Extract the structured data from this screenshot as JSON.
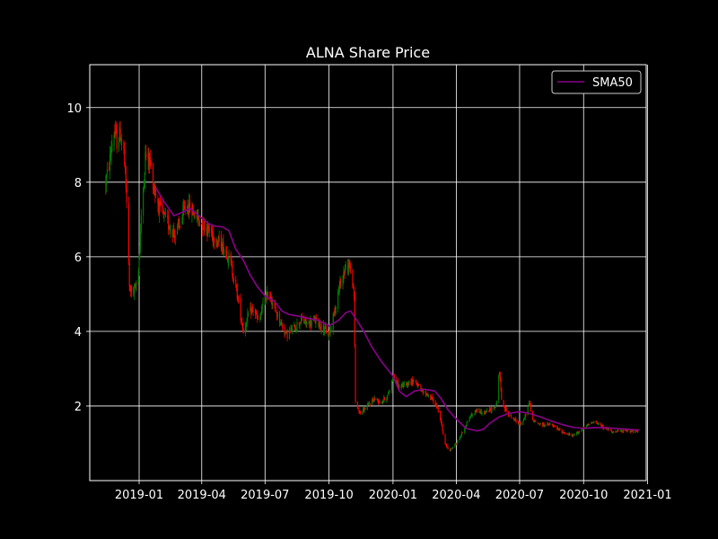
{
  "chart_data": {
    "type": "candlestick",
    "title": "ALNA Share Price",
    "xlabel": "",
    "ylabel": "",
    "grid": true,
    "legend_position": "top-right",
    "background": "#000000",
    "foreground": "#ffffff",
    "up_color": "#008000",
    "down_color": "#ff0000",
    "sma_color": "#8b008b",
    "xlim": [
      "2018-10-22",
      "2020-12-30"
    ],
    "ylim": [
      0.0,
      11.15
    ],
    "x_ticks": [
      {
        "value": "2019-01-01",
        "label": "2019-01"
      },
      {
        "value": "2019-04-01",
        "label": "2019-04"
      },
      {
        "value": "2019-07-01",
        "label": "2019-07"
      },
      {
        "value": "2019-10-01",
        "label": "2019-10"
      },
      {
        "value": "2020-01-01",
        "label": "2020-01"
      },
      {
        "value": "2020-04-01",
        "label": "2020-04"
      },
      {
        "value": "2020-07-01",
        "label": "2020-07"
      },
      {
        "value": "2020-10-01",
        "label": "2020-10"
      },
      {
        "value": "2021-01-01",
        "label": "2021-01"
      }
    ],
    "y_ticks": [
      {
        "value": 2,
        "label": "2"
      },
      {
        "value": 4,
        "label": "4"
      },
      {
        "value": 6,
        "label": "6"
      },
      {
        "value": 8,
        "label": "8"
      },
      {
        "value": 10,
        "label": "10"
      }
    ],
    "price_path": [
      [
        "2018-11-14",
        8.0
      ],
      [
        "2018-11-20",
        8.6
      ],
      [
        "2018-11-25",
        9.4
      ],
      [
        "2018-11-30",
        9.1
      ],
      [
        "2018-12-05",
        9.3
      ],
      [
        "2018-12-10",
        8.8
      ],
      [
        "2018-12-14",
        7.5
      ],
      [
        "2018-12-18",
        5.2
      ],
      [
        "2018-12-24",
        5.0
      ],
      [
        "2018-12-30",
        5.4
      ],
      [
        "2019-01-05",
        7.3
      ],
      [
        "2019-01-10",
        8.7
      ],
      [
        "2019-01-16",
        8.6
      ],
      [
        "2019-01-22",
        7.9
      ],
      [
        "2019-01-30",
        7.3
      ],
      [
        "2019-02-07",
        7.0
      ],
      [
        "2019-02-15",
        6.8
      ],
      [
        "2019-02-22",
        6.6
      ],
      [
        "2019-03-01",
        6.9
      ],
      [
        "2019-03-10",
        7.4
      ],
      [
        "2019-03-20",
        7.2
      ],
      [
        "2019-03-28",
        7.0
      ],
      [
        "2019-04-08",
        6.8
      ],
      [
        "2019-04-20",
        6.5
      ],
      [
        "2019-05-01",
        6.3
      ],
      [
        "2019-05-10",
        6.0
      ],
      [
        "2019-05-20",
        5.2
      ],
      [
        "2019-05-31",
        4.0
      ],
      [
        "2019-06-08",
        4.5
      ],
      [
        "2019-06-15",
        4.6
      ],
      [
        "2019-06-22",
        4.2
      ],
      [
        "2019-06-30",
        4.9
      ],
      [
        "2019-07-08",
        5.0
      ],
      [
        "2019-07-15",
        4.6
      ],
      [
        "2019-07-22",
        4.3
      ],
      [
        "2019-08-01",
        3.9
      ],
      [
        "2019-08-12",
        4.1
      ],
      [
        "2019-08-22",
        4.3
      ],
      [
        "2019-09-01",
        4.2
      ],
      [
        "2019-09-12",
        4.3
      ],
      [
        "2019-09-22",
        4.1
      ],
      [
        "2019-10-01",
        3.9
      ],
      [
        "2019-10-08",
        4.5
      ],
      [
        "2019-10-16",
        5.2
      ],
      [
        "2019-10-24",
        5.7
      ],
      [
        "2019-11-01",
        5.7
      ],
      [
        "2019-11-06",
        5.0
      ],
      [
        "2019-11-08",
        2.1
      ],
      [
        "2019-11-15",
        1.8
      ],
      [
        "2019-11-25",
        2.0
      ],
      [
        "2019-12-05",
        2.2
      ],
      [
        "2019-12-15",
        2.1
      ],
      [
        "2019-12-25",
        2.3
      ],
      [
        "2020-01-01",
        2.8
      ],
      [
        "2020-01-10",
        2.5
      ],
      [
        "2020-01-20",
        2.6
      ],
      [
        "2020-02-01",
        2.7
      ],
      [
        "2020-02-10",
        2.4
      ],
      [
        "2020-02-20",
        2.3
      ],
      [
        "2020-03-01",
        2.1
      ],
      [
        "2020-03-08",
        1.8
      ],
      [
        "2020-03-15",
        1.0
      ],
      [
        "2020-03-22",
        0.8
      ],
      [
        "2020-04-01",
        1.0
      ],
      [
        "2020-04-10",
        1.3
      ],
      [
        "2020-04-20",
        1.7
      ],
      [
        "2020-05-01",
        1.9
      ],
      [
        "2020-05-10",
        1.8
      ],
      [
        "2020-05-20",
        1.9
      ],
      [
        "2020-05-28",
        2.0
      ],
      [
        "2020-06-02",
        2.9
      ],
      [
        "2020-06-06",
        2.0
      ],
      [
        "2020-06-15",
        1.8
      ],
      [
        "2020-06-25",
        1.6
      ],
      [
        "2020-07-05",
        1.5
      ],
      [
        "2020-07-15",
        2.1
      ],
      [
        "2020-07-20",
        1.6
      ],
      [
        "2020-08-01",
        1.5
      ],
      [
        "2020-08-15",
        1.5
      ],
      [
        "2020-09-01",
        1.3
      ],
      [
        "2020-09-15",
        1.2
      ],
      [
        "2020-10-01",
        1.4
      ],
      [
        "2020-10-15",
        1.6
      ],
      [
        "2020-11-01",
        1.4
      ],
      [
        "2020-11-15",
        1.3
      ],
      [
        "2020-12-01",
        1.35
      ],
      [
        "2020-12-20",
        1.3
      ]
    ],
    "series": [
      {
        "name": "SMA50",
        "points": [
          [
            "2019-01-25",
            7.85
          ],
          [
            "2019-02-05",
            7.5
          ],
          [
            "2019-02-20",
            7.1
          ],
          [
            "2019-03-05",
            7.2
          ],
          [
            "2019-03-15",
            7.3
          ],
          [
            "2019-03-28",
            7.1
          ],
          [
            "2019-04-10",
            6.9
          ],
          [
            "2019-04-20",
            6.82
          ],
          [
            "2019-05-01",
            6.8
          ],
          [
            "2019-05-10",
            6.7
          ],
          [
            "2019-05-20",
            6.2
          ],
          [
            "2019-05-31",
            5.9
          ],
          [
            "2019-06-10",
            5.5
          ],
          [
            "2019-06-20",
            5.2
          ],
          [
            "2019-07-01",
            4.95
          ],
          [
            "2019-07-15",
            4.8
          ],
          [
            "2019-07-25",
            4.55
          ],
          [
            "2019-08-05",
            4.45
          ],
          [
            "2019-08-20",
            4.4
          ],
          [
            "2019-09-01",
            4.35
          ],
          [
            "2019-09-15",
            4.3
          ],
          [
            "2019-10-01",
            4.15
          ],
          [
            "2019-10-15",
            4.3
          ],
          [
            "2019-10-25",
            4.5
          ],
          [
            "2019-11-01",
            4.55
          ],
          [
            "2019-11-10",
            4.3
          ],
          [
            "2019-11-20",
            4.0
          ],
          [
            "2019-12-01",
            3.6
          ],
          [
            "2019-12-15",
            3.2
          ],
          [
            "2020-01-01",
            2.8
          ],
          [
            "2020-01-10",
            2.4
          ],
          [
            "2020-01-20",
            2.25
          ],
          [
            "2020-02-01",
            2.4
          ],
          [
            "2020-02-15",
            2.45
          ],
          [
            "2020-03-01",
            2.4
          ],
          [
            "2020-03-10",
            2.2
          ],
          [
            "2020-03-20",
            1.9
          ],
          [
            "2020-04-01",
            1.65
          ],
          [
            "2020-04-15",
            1.4
          ],
          [
            "2020-05-01",
            1.33
          ],
          [
            "2020-05-10",
            1.38
          ],
          [
            "2020-05-20",
            1.55
          ],
          [
            "2020-06-01",
            1.7
          ],
          [
            "2020-06-15",
            1.8
          ],
          [
            "2020-07-01",
            1.85
          ],
          [
            "2020-07-15",
            1.8
          ],
          [
            "2020-08-01",
            1.7
          ],
          [
            "2020-08-15",
            1.6
          ],
          [
            "2020-09-01",
            1.5
          ],
          [
            "2020-09-15",
            1.43
          ],
          [
            "2020-10-01",
            1.4
          ],
          [
            "2020-10-15",
            1.42
          ],
          [
            "2020-11-01",
            1.42
          ],
          [
            "2020-11-15",
            1.4
          ],
          [
            "2020-12-01",
            1.38
          ],
          [
            "2020-12-20",
            1.35
          ]
        ]
      }
    ]
  }
}
